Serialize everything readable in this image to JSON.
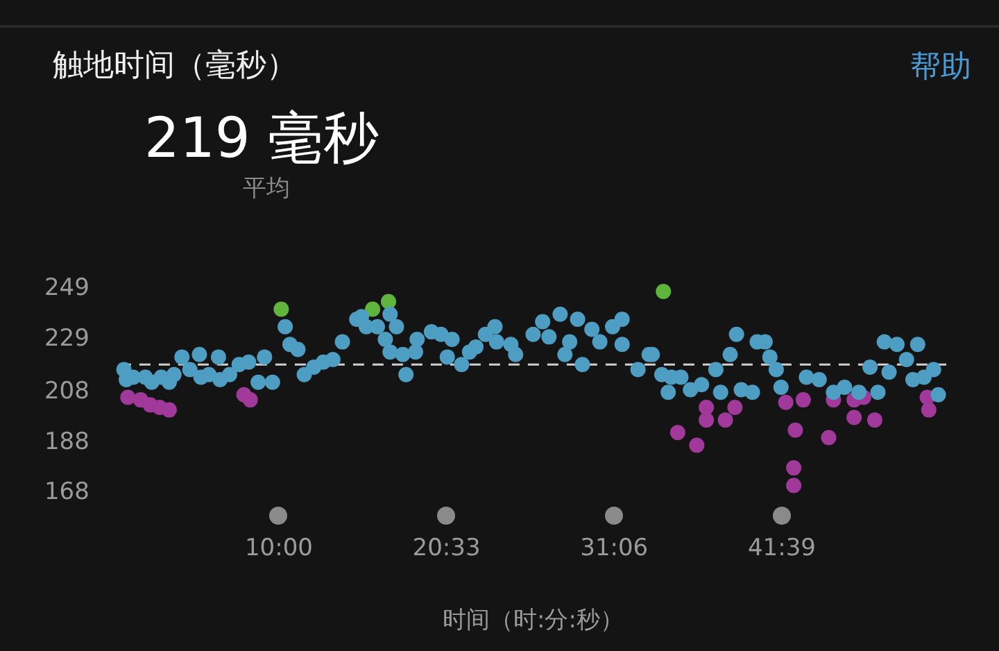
{
  "chart_data": {
    "type": "scatter",
    "title": "触地时间（毫秒）",
    "annotations": [
      "219 毫秒",
      "平均",
      "帮助"
    ],
    "xlabel": "时间（时:分:秒）",
    "xlim": [
      0,
      52
    ],
    "xticks": [
      {
        "value": 10,
        "label": "10:00"
      },
      {
        "value": 20.55,
        "label": "20:33"
      },
      {
        "value": 31.1,
        "label": "31:06"
      },
      {
        "value": 41.65,
        "label": "41:39"
      }
    ],
    "ylim": [
      168,
      249
    ],
    "yticks": [
      249,
      229,
      208,
      188,
      168
    ],
    "grid": false,
    "legend": false,
    "marker": "circle",
    "ref_lines": [
      {
        "axis": "y",
        "value": 219,
        "color": "#cfcfcf",
        "line_style": "dashed"
      }
    ],
    "series": [
      {
        "color": "#4e9ec4",
        "x": [
          0.25,
          0.4,
          0.84,
          1.6,
          2.0,
          2.6,
          3.1,
          3.4,
          3.9,
          4.4,
          5.0,
          5.1,
          5.6,
          6.2,
          6.3,
          6.9,
          7.5,
          8.1,
          8.7,
          9.1,
          9.6,
          10.4,
          10.7,
          11.2,
          11.6,
          12.2,
          12.8,
          13.4,
          14.0,
          14.9,
          15.5,
          15.2,
          16.2,
          16.7,
          17.4,
          17.0,
          17.0,
          17.8,
          18.0,
          18.7,
          18.6,
          19.6,
          20.2,
          20.6,
          20.9,
          21.5,
          22.0,
          22.4,
          23.0,
          23.6,
          23.7,
          24.6,
          24.9,
          26.0,
          26.6,
          27.0,
          27.7,
          28.3,
          28.0,
          28.8,
          29.1,
          29.7,
          30.2,
          31.0,
          31.6,
          31.6,
          32.6,
          33.3,
          34.1,
          34.7,
          34.5,
          33.5,
          35.3,
          35.9,
          36.6,
          37.5,
          37.8,
          38.4,
          38.8,
          39.1,
          39.8,
          40.1,
          40.6,
          40.9,
          41.3,
          41.6,
          43.2,
          44.0,
          44.9,
          45.6,
          46.5,
          47.2,
          47.7,
          48.1,
          48.4,
          48.9,
          49.5,
          49.9,
          50.2,
          50.6,
          51.2,
          51.5
        ],
        "values": [
          217,
          213,
          214,
          214,
          212,
          214,
          212,
          215,
          222,
          217,
          223,
          214,
          215,
          222,
          213,
          215,
          219,
          220,
          212,
          222,
          212,
          234,
          227,
          225,
          215,
          218,
          220,
          221,
          228,
          237,
          234,
          238,
          234,
          229,
          234,
          239,
          224,
          223,
          215,
          229,
          224,
          232,
          231,
          222,
          229,
          219,
          224,
          226,
          231,
          234,
          228,
          227,
          223,
          231,
          236,
          230,
          239,
          228,
          223,
          237,
          219,
          233,
          228,
          234,
          237,
          227,
          217,
          223,
          215,
          214,
          208,
          223,
          214,
          209,
          211,
          217,
          208,
          223,
          231,
          209,
          208,
          228,
          228,
          222,
          217,
          210,
          214,
          213,
          208,
          210,
          208,
          218,
          208,
          228,
          216,
          227,
          221,
          213,
          227,
          214,
          217,
          207
        ]
      },
      {
        "color": "#a0399a",
        "x": [
          0.5,
          1.3,
          1.9,
          2.5,
          3.1,
          7.8,
          8.2,
          35.1,
          36.3,
          36.9,
          36.9,
          38.1,
          38.7,
          41.9,
          43.0,
          42.5,
          42.4,
          42.4,
          44.6,
          44.9,
          46.2,
          46.8,
          46.2,
          47.5,
          50.8,
          50.9
        ],
        "values": [
          206,
          205,
          203,
          202,
          201,
          207,
          205,
          192,
          187,
          202,
          197,
          197,
          202,
          204,
          205,
          193,
          178,
          171,
          190,
          205,
          205,
          206,
          198,
          197,
          206,
          201
        ]
      },
      {
        "color": "#5fb43c",
        "x": [
          10.15,
          15.9,
          16.9,
          34.2
        ],
        "values": [
          241,
          241,
          244,
          248
        ]
      }
    ]
  }
}
